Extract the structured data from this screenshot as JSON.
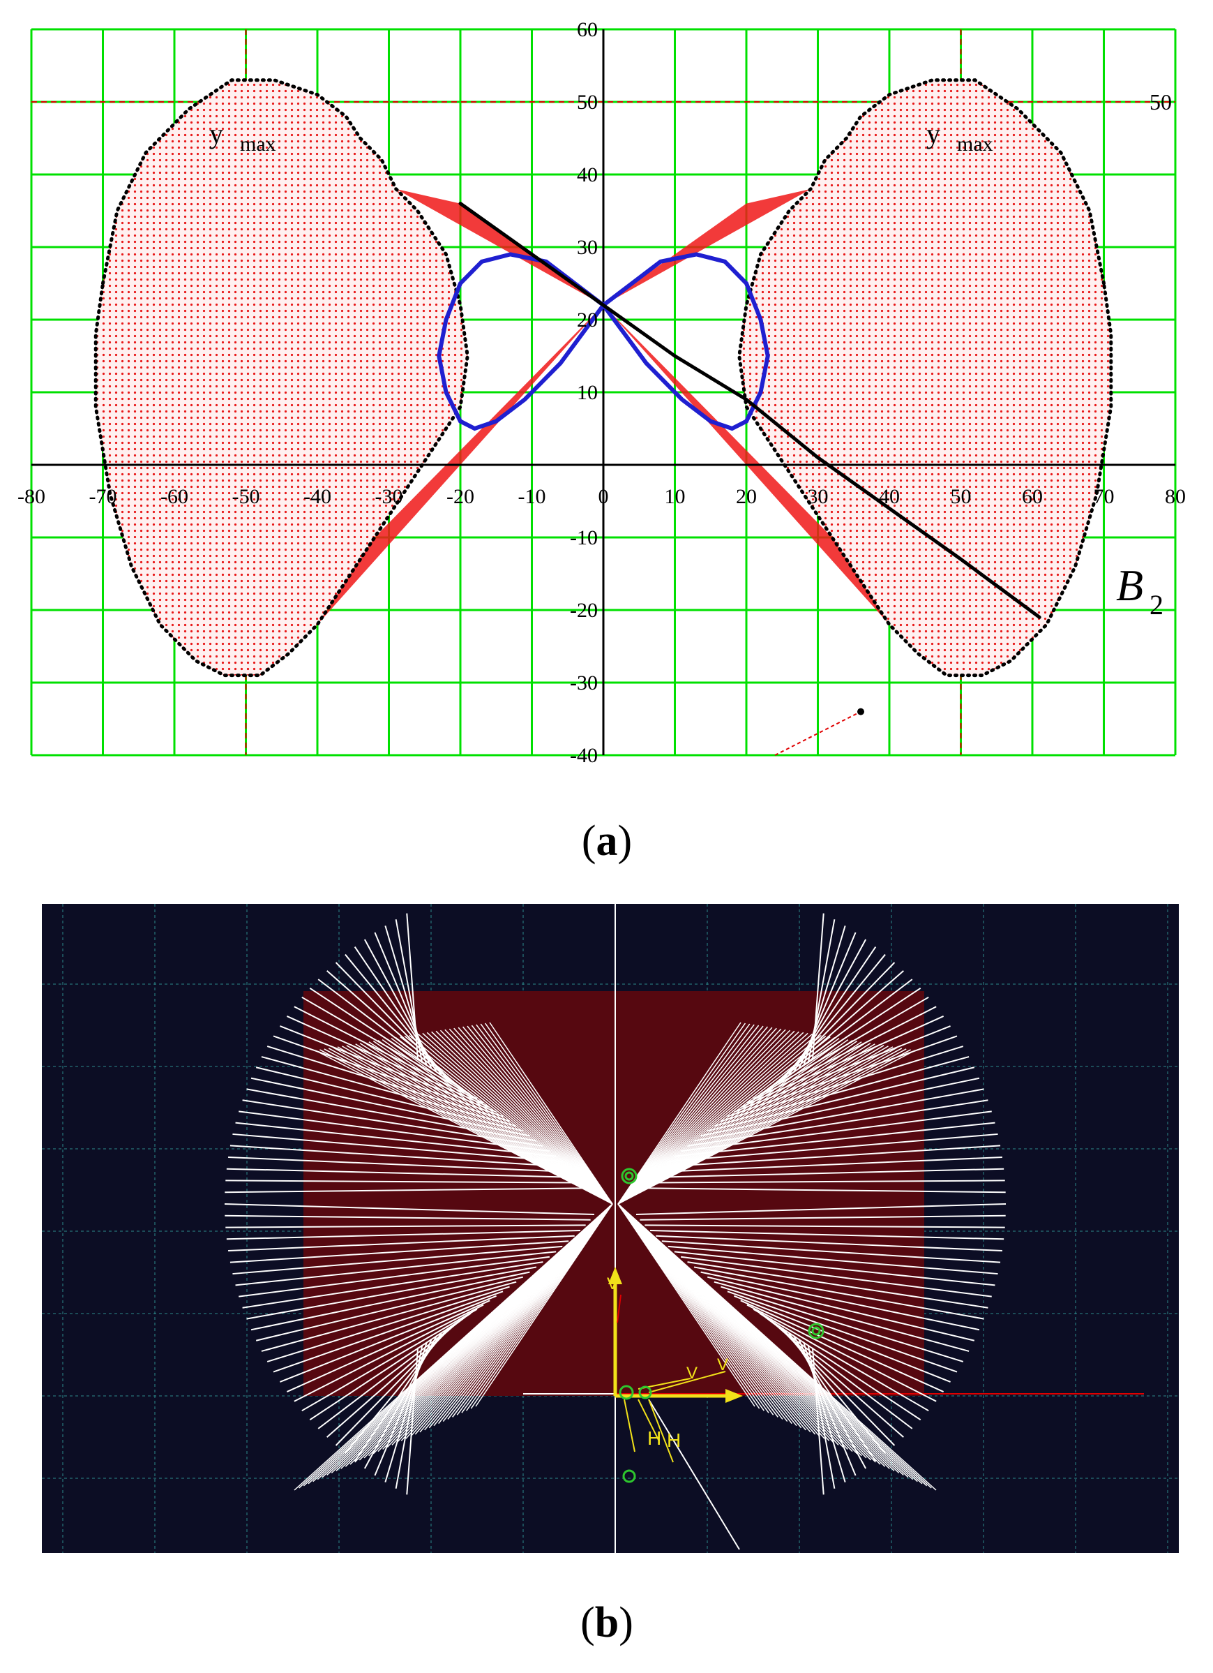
{
  "panel_a": {
    "caption_letter": "a",
    "chart_data": {
      "type": "scatter",
      "xlim": [
        -80,
        80
      ],
      "ylim": [
        -40,
        60
      ],
      "x_ticks": [
        -80,
        -70,
        -60,
        -50,
        -40,
        -30,
        -20,
        -10,
        0,
        10,
        20,
        30,
        40,
        50,
        60,
        70,
        80
      ],
      "y_ticks": [
        -40,
        -30,
        -20,
        -10,
        10,
        20,
        30,
        40,
        50,
        60
      ],
      "grid": true,
      "grid_color": "#00e000",
      "reference_lines": {
        "x": [
          -50,
          50
        ],
        "y": [
          50
        ],
        "color": "#e00000"
      },
      "annotations": {
        "ref_value": "50",
        "ymax_left": "y",
        "ymax_left_sub": "max",
        "ymax_right": "y",
        "ymax_right_sub": "max",
        "curve_label": "B",
        "curve_label_sub": "2"
      },
      "series": [
        {
          "role": "workspace outer boundary (left lobe)",
          "color": "#000000",
          "points": [
            [
              -70,
              25
            ],
            [
              -68,
              35
            ],
            [
              -64,
              43
            ],
            [
              -58,
              49
            ],
            [
              -52,
              53
            ],
            [
              -46,
              53
            ],
            [
              -40,
              51
            ],
            [
              -36,
              48
            ],
            [
              -34,
              45
            ],
            [
              -31,
              42
            ],
            [
              -29,
              38
            ],
            [
              -26,
              35
            ],
            [
              -22,
              29
            ],
            [
              -20,
              22
            ],
            [
              -19,
              15
            ],
            [
              -20,
              8
            ],
            [
              -24,
              2
            ],
            [
              -28,
              -4
            ],
            [
              -32,
              -10
            ],
            [
              -36,
              -16
            ],
            [
              -40,
              -22
            ],
            [
              -44,
              -26
            ],
            [
              -48,
              -29
            ],
            [
              -53,
              -29
            ],
            [
              -57,
              -27
            ],
            [
              -62,
              -22
            ],
            [
              -66,
              -14
            ],
            [
              -69,
              -4
            ],
            [
              -71,
              8
            ],
            [
              -71,
              18
            ],
            [
              -70,
              25
            ]
          ]
        },
        {
          "role": "workspace outer boundary (right lobe)",
          "color": "#000000",
          "points": [
            [
              70,
              25
            ],
            [
              68,
              35
            ],
            [
              64,
              43
            ],
            [
              58,
              49
            ],
            [
              52,
              53
            ],
            [
              46,
              53
            ],
            [
              40,
              51
            ],
            [
              36,
              48
            ],
            [
              34,
              45
            ],
            [
              31,
              42
            ],
            [
              29,
              38
            ],
            [
              26,
              35
            ],
            [
              22,
              29
            ],
            [
              20,
              22
            ],
            [
              19,
              15
            ],
            [
              20,
              8
            ],
            [
              24,
              2
            ],
            [
              28,
              -4
            ],
            [
              32,
              -10
            ],
            [
              36,
              -16
            ],
            [
              40,
              -22
            ],
            [
              44,
              -26
            ],
            [
              48,
              -29
            ],
            [
              53,
              -29
            ],
            [
              57,
              -27
            ],
            [
              62,
              -22
            ],
            [
              66,
              -14
            ],
            [
              69,
              -4
            ],
            [
              71,
              8
            ],
            [
              71,
              18
            ],
            [
              70,
              25
            ]
          ]
        },
        {
          "role": "figure-eight trajectory",
          "color": "#1f1fd0",
          "points": [
            [
              0,
              22
            ],
            [
              4,
              25
            ],
            [
              8,
              28
            ],
            [
              13,
              29
            ],
            [
              17,
              28
            ],
            [
              20,
              25
            ],
            [
              22,
              20
            ],
            [
              23,
              15
            ],
            [
              22,
              10
            ],
            [
              20,
              6
            ],
            [
              18,
              5
            ],
            [
              15,
              6
            ],
            [
              11,
              9
            ],
            [
              6,
              14
            ],
            [
              0,
              22
            ],
            [
              -6,
              14
            ],
            [
              -11,
              9
            ],
            [
              -15,
              6
            ],
            [
              -18,
              5
            ],
            [
              -20,
              6
            ],
            [
              -22,
              10
            ],
            [
              -23,
              15
            ],
            [
              -22,
              20
            ],
            [
              -20,
              25
            ],
            [
              -17,
              28
            ],
            [
              -13,
              29
            ],
            [
              -8,
              28
            ],
            [
              -4,
              25
            ],
            [
              0,
              22
            ]
          ]
        },
        {
          "role": "B2 line",
          "color": "#000000",
          "points": [
            [
              -20,
              36
            ],
            [
              -10,
              29
            ],
            [
              0,
              22
            ],
            [
              10,
              15
            ],
            [
              20,
              9
            ],
            [
              30,
              1
            ],
            [
              40,
              -6
            ],
            [
              50,
              -13
            ],
            [
              61,
              -21
            ]
          ]
        },
        {
          "role": "isolated point",
          "color": "#000000",
          "points": [
            [
              36,
              -34
            ]
          ]
        }
      ]
    }
  },
  "panel_b": {
    "caption_letter": "b",
    "colors": {
      "background": "#0c0d24",
      "workspace_fill": "#560810",
      "lines": "#ffffff",
      "axes": "#f2e21a",
      "markers": "#2ec62e",
      "ref_line": "#e00000"
    },
    "axis_letters": [
      "V",
      "V",
      "V",
      "H",
      "H"
    ]
  }
}
